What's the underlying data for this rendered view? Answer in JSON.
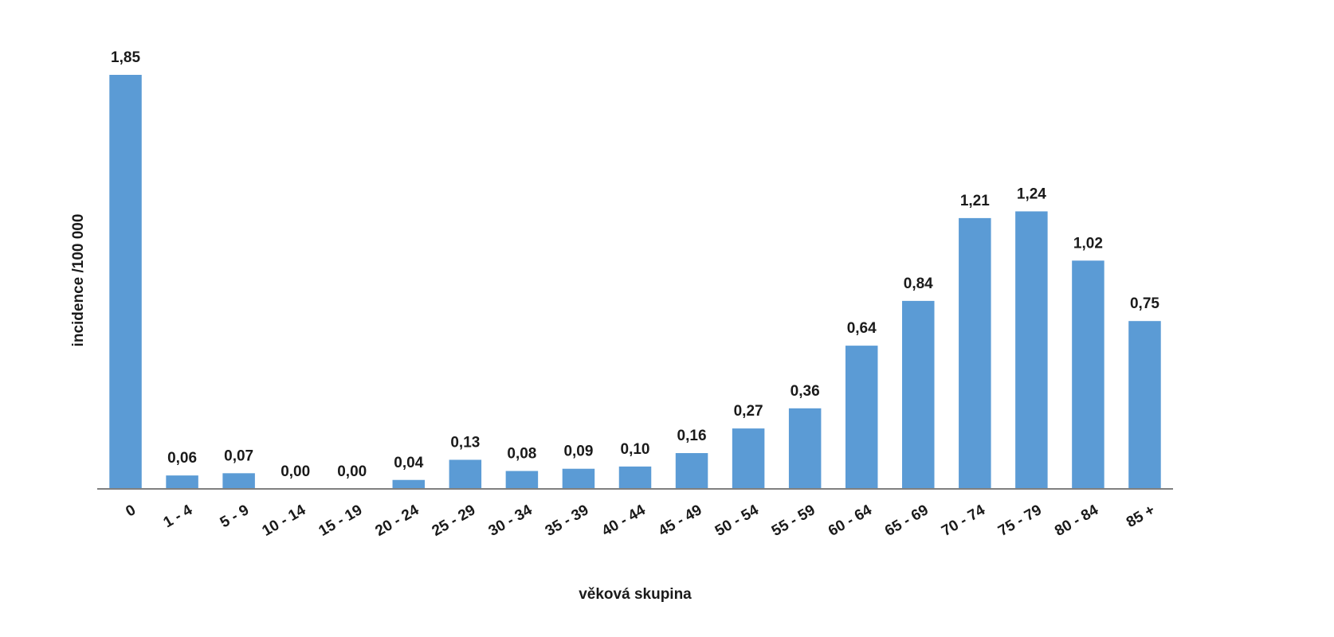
{
  "chart_data": {
    "type": "bar",
    "title": "",
    "xlabel": "věková skupina",
    "ylabel": "incidence /100 000",
    "ylim": [
      0,
      1.85
    ],
    "grid": false,
    "categories": [
      "0",
      "1 - 4",
      "5 - 9",
      "10 - 14",
      "15 - 19",
      "20 - 24",
      "25 - 29",
      "30 - 34",
      "35 - 39",
      "40 - 44",
      "45 - 49",
      "50 - 54",
      "55 - 59",
      "60 - 64",
      "65 - 69",
      "70 - 74",
      "75 - 79",
      "80 - 84",
      "85 +"
    ],
    "values": [
      1.85,
      0.06,
      0.07,
      0.0,
      0.0,
      0.04,
      0.13,
      0.08,
      0.09,
      0.1,
      0.16,
      0.27,
      0.36,
      0.64,
      0.84,
      1.21,
      1.24,
      1.02,
      0.75
    ],
    "value_labels": [
      "1,85",
      "0,06",
      "0,07",
      "0,00",
      "0,00",
      "0,04",
      "0,13",
      "0,08",
      "0,09",
      "0,10",
      "0,16",
      "0,27",
      "0,36",
      "0,64",
      "0,84",
      "1,21",
      "1,24",
      "1,02",
      "0,75"
    ],
    "bar_color": "#5b9bd5"
  }
}
